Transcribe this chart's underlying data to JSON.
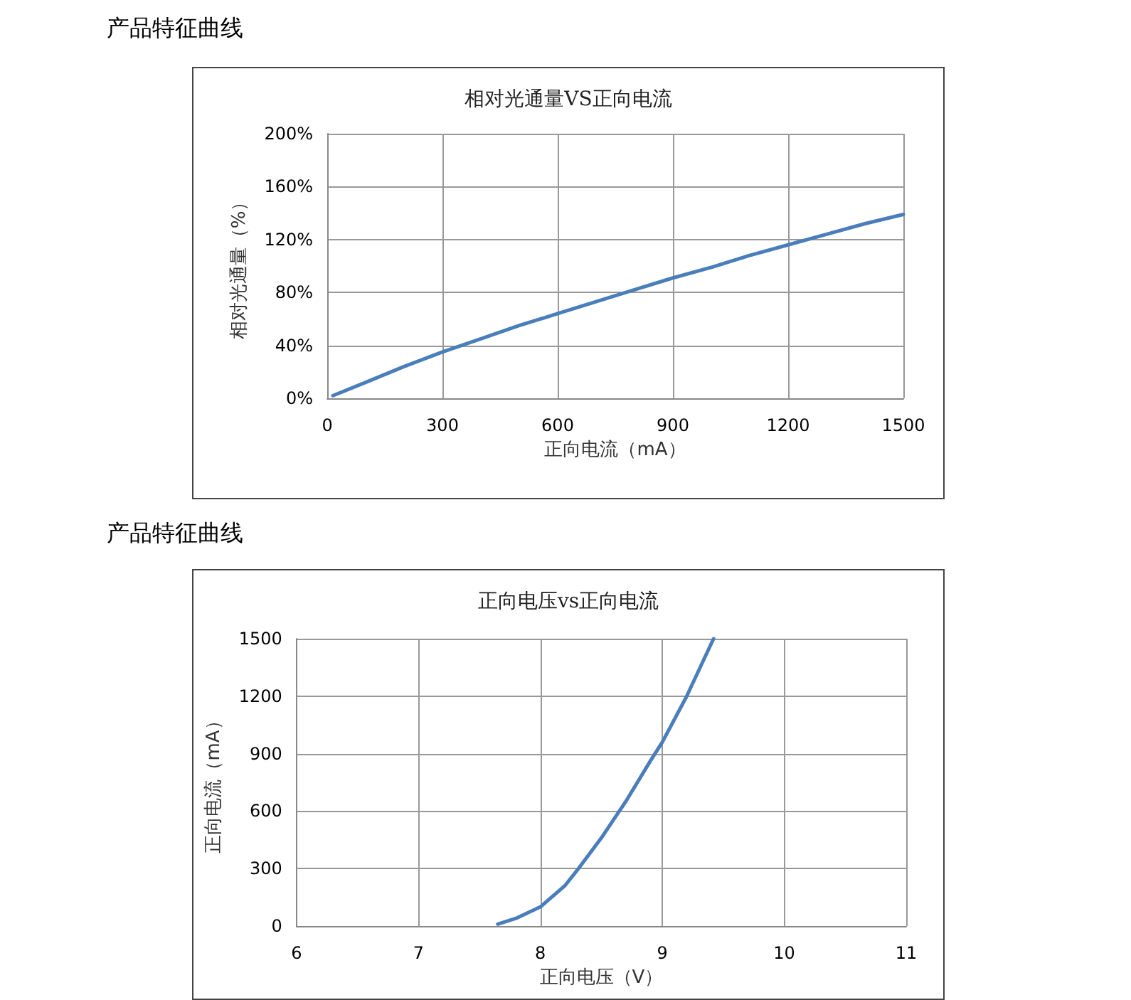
{
  "chart_data": [
    {
      "type": "line",
      "title": "相对光通量VS正向电流",
      "xlabel": "正向电流（mA）",
      "ylabel": "相对光通量（%）",
      "annotations": [
        "产品特征曲线"
      ],
      "x": [
        15,
        100,
        200,
        300,
        400,
        500,
        600,
        700,
        800,
        900,
        1000,
        1100,
        1200,
        1300,
        1400,
        1500
      ],
      "series": [
        {
          "color": "#4a7ebb",
          "values": [
            2,
            12,
            24,
            35,
            45,
            55,
            64,
            73,
            82,
            91,
            99,
            108,
            116,
            124,
            132,
            139
          ]
        }
      ],
      "xlim": [
        0,
        1500
      ],
      "xticks": [
        0,
        300,
        600,
        900,
        1200,
        1500
      ],
      "ylim": [
        0,
        200
      ],
      "yticks": [
        {
          "value": 0,
          "label": "0%"
        },
        {
          "value": 40,
          "label": "40%"
        },
        {
          "value": 80,
          "label": "80%"
        },
        {
          "value": 120,
          "label": "120%"
        },
        {
          "value": 160,
          "label": "160%"
        },
        {
          "value": 200,
          "label": "200%"
        }
      ],
      "grid": true,
      "marker": "none",
      "line_style": "solid"
    },
    {
      "type": "line",
      "title": "正向电压vs正向电流",
      "xlabel": "正向电压（V）",
      "ylabel": "正向电流（mA）",
      "annotations": [
        "产品特征曲线"
      ],
      "x": [
        7.65,
        7.8,
        8,
        8.2,
        8.3,
        8.5,
        8.7,
        8.9,
        9,
        9.2,
        9.42
      ],
      "series": [
        {
          "color": "#4a7ebb",
          "values": [
            10,
            40,
            100,
            210,
            290,
            460,
            650,
            860,
            960,
            1200,
            1500
          ]
        }
      ],
      "xlim": [
        6,
        11
      ],
      "xticks": [
        6,
        7,
        8,
        9,
        10,
        11
      ],
      "ylim": [
        0,
        1500
      ],
      "yticks": [
        0,
        300,
        600,
        900,
        1200,
        1500
      ],
      "grid": true,
      "marker": "none",
      "line_style": "solid"
    }
  ]
}
